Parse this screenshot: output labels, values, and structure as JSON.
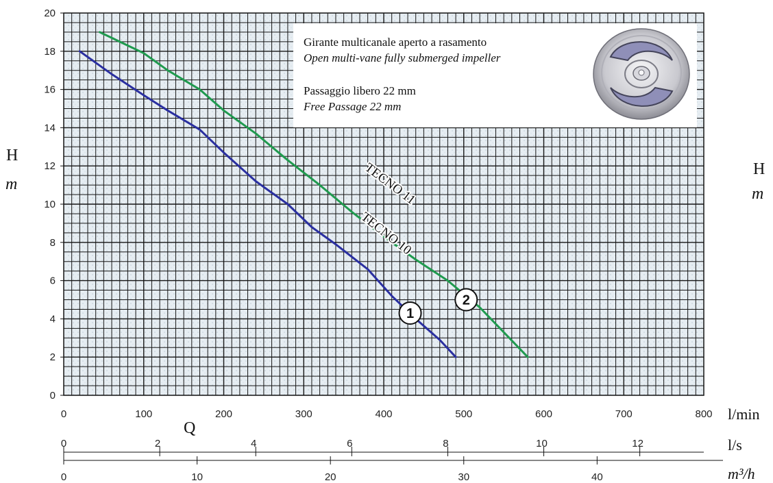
{
  "chart_data": {
    "type": "line",
    "xlabel": "Q",
    "ylabel": "H",
    "ylabel_unit": "m",
    "xlim": [
      0,
      800
    ],
    "ylim": [
      0,
      20
    ],
    "x_unit": "l/min",
    "grid": true,
    "x_ticks": [
      "0",
      "100",
      "200",
      "300",
      "400",
      "500",
      "600",
      "700",
      "800"
    ],
    "y_ticks": [
      "0",
      "2",
      "4",
      "6",
      "8",
      "10",
      "12",
      "14",
      "16",
      "18",
      "20"
    ],
    "secondary_axes": [
      {
        "unit": "l/s",
        "max": 13.333,
        "ticks": [
          "0",
          "2",
          "4",
          "6",
          "8",
          "10",
          "12"
        ]
      },
      {
        "unit": "m³/h",
        "max": 48,
        "ticks": [
          "0",
          "10",
          "20",
          "30",
          "40"
        ]
      }
    ],
    "series": [
      {
        "name": "TECNO 10",
        "marker": "1",
        "color": "#2a2fa0",
        "x": [
          20,
          60,
          100,
          130,
          170,
          200,
          240,
          280,
          310,
          340,
          380,
          410,
          440,
          470,
          490
        ],
        "y": [
          18,
          16.8,
          15.7,
          14.9,
          13.9,
          12.7,
          11.2,
          10,
          8.8,
          7.9,
          6.6,
          5.2,
          4,
          2.9,
          2
        ]
      },
      {
        "name": "TECNO 11",
        "marker": "2",
        "color": "#1f9a4e",
        "x": [
          45,
          100,
          130,
          170,
          200,
          240,
          280,
          320,
          360,
          400,
          440,
          480,
          520,
          550,
          580
        ],
        "y": [
          19,
          17.9,
          17,
          16,
          14.9,
          13.7,
          12.3,
          11,
          9.6,
          8.3,
          7.1,
          6,
          4.6,
          3.3,
          2
        ]
      }
    ],
    "annotation": {
      "line1": "Girante multicanale aperto a rasamento",
      "line2": "Open multi-vane fully submerged impeller",
      "line3": "Passaggio libero 22 mm",
      "line4": "Free Passage 22 mm",
      "image": "open-multi-vane-impeller"
    },
    "colors": {
      "grid_background": "#e8eef3",
      "grid_lines": "#1a1a1a"
    }
  }
}
